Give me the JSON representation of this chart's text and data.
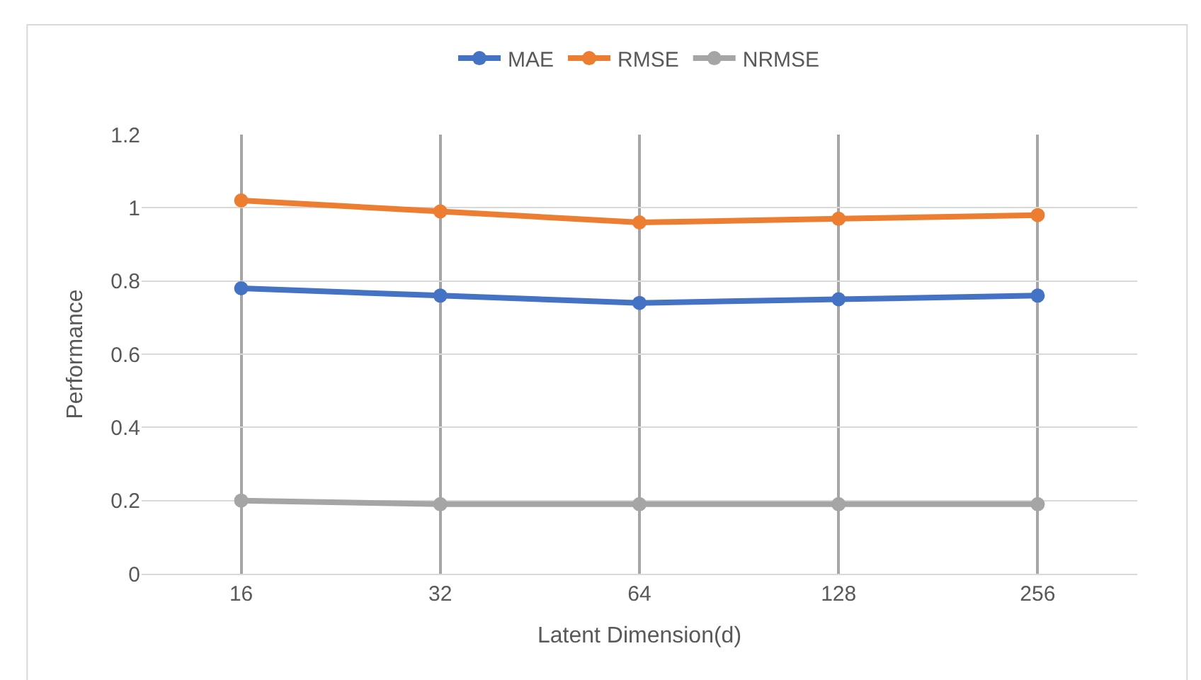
{
  "chart_data": {
    "type": "line",
    "xlabel": "Latent Dimension(d)",
    "ylabel": "Performance",
    "categories": [
      "16",
      "32",
      "64",
      "128",
      "256"
    ],
    "series": [
      {
        "name": "MAE",
        "color": "#4472c4",
        "values": [
          0.78,
          0.76,
          0.74,
          0.75,
          0.76
        ]
      },
      {
        "name": "RMSE",
        "color": "#ed7d31",
        "values": [
          1.02,
          0.99,
          0.96,
          0.97,
          0.98
        ]
      },
      {
        "name": "NRMSE",
        "color": "#a5a5a5",
        "values": [
          0.2,
          0.19,
          0.19,
          0.19,
          0.19
        ]
      }
    ],
    "ylim": [
      0,
      1.2
    ],
    "yticks": [
      0,
      0.2,
      0.4,
      0.6,
      0.8,
      1,
      1.2
    ],
    "grid": true,
    "legend": "top",
    "marker": "circle",
    "line_style": "solid"
  }
}
